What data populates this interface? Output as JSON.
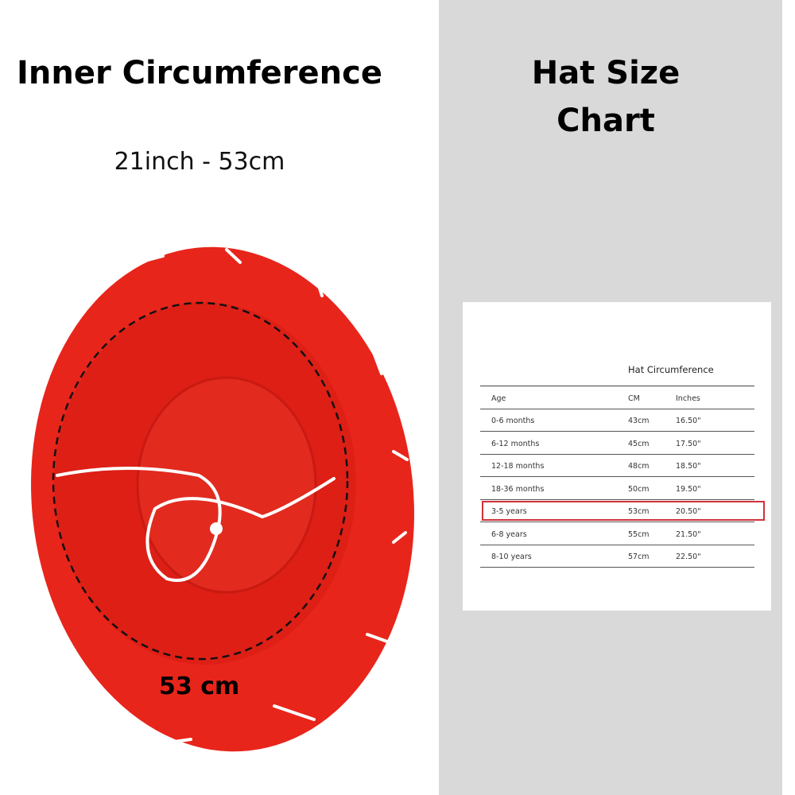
{
  "left_panel": {
    "title": "Inner Circumference",
    "subtitle": "21inch - 53cm",
    "measurement_label": "53 cm"
  },
  "right_panel": {
    "title": "Hat Size Chart",
    "table": {
      "caption": "Hat Circumference",
      "columns": [
        "Age",
        "CM",
        "Inches"
      ],
      "rows": [
        [
          "0-6 months",
          "43cm",
          "16.50\""
        ],
        [
          "6-12 months",
          "45cm",
          "17.50\""
        ],
        [
          "12-18 months",
          "48cm",
          "18.50\""
        ],
        [
          "18-36 months",
          "50cm",
          "19.50\""
        ],
        [
          "3-5 years",
          "53cm",
          "20.50\""
        ],
        [
          "6-8 years",
          "55cm",
          "21.50\""
        ],
        [
          "8-10 years",
          "57cm",
          "22.50\""
        ]
      ],
      "highlighted_row": "3-5 years",
      "highlight_color": "#d0323a"
    }
  },
  "colors": {
    "hat": "#e8251b",
    "background_right": "#d9d9d9"
  }
}
